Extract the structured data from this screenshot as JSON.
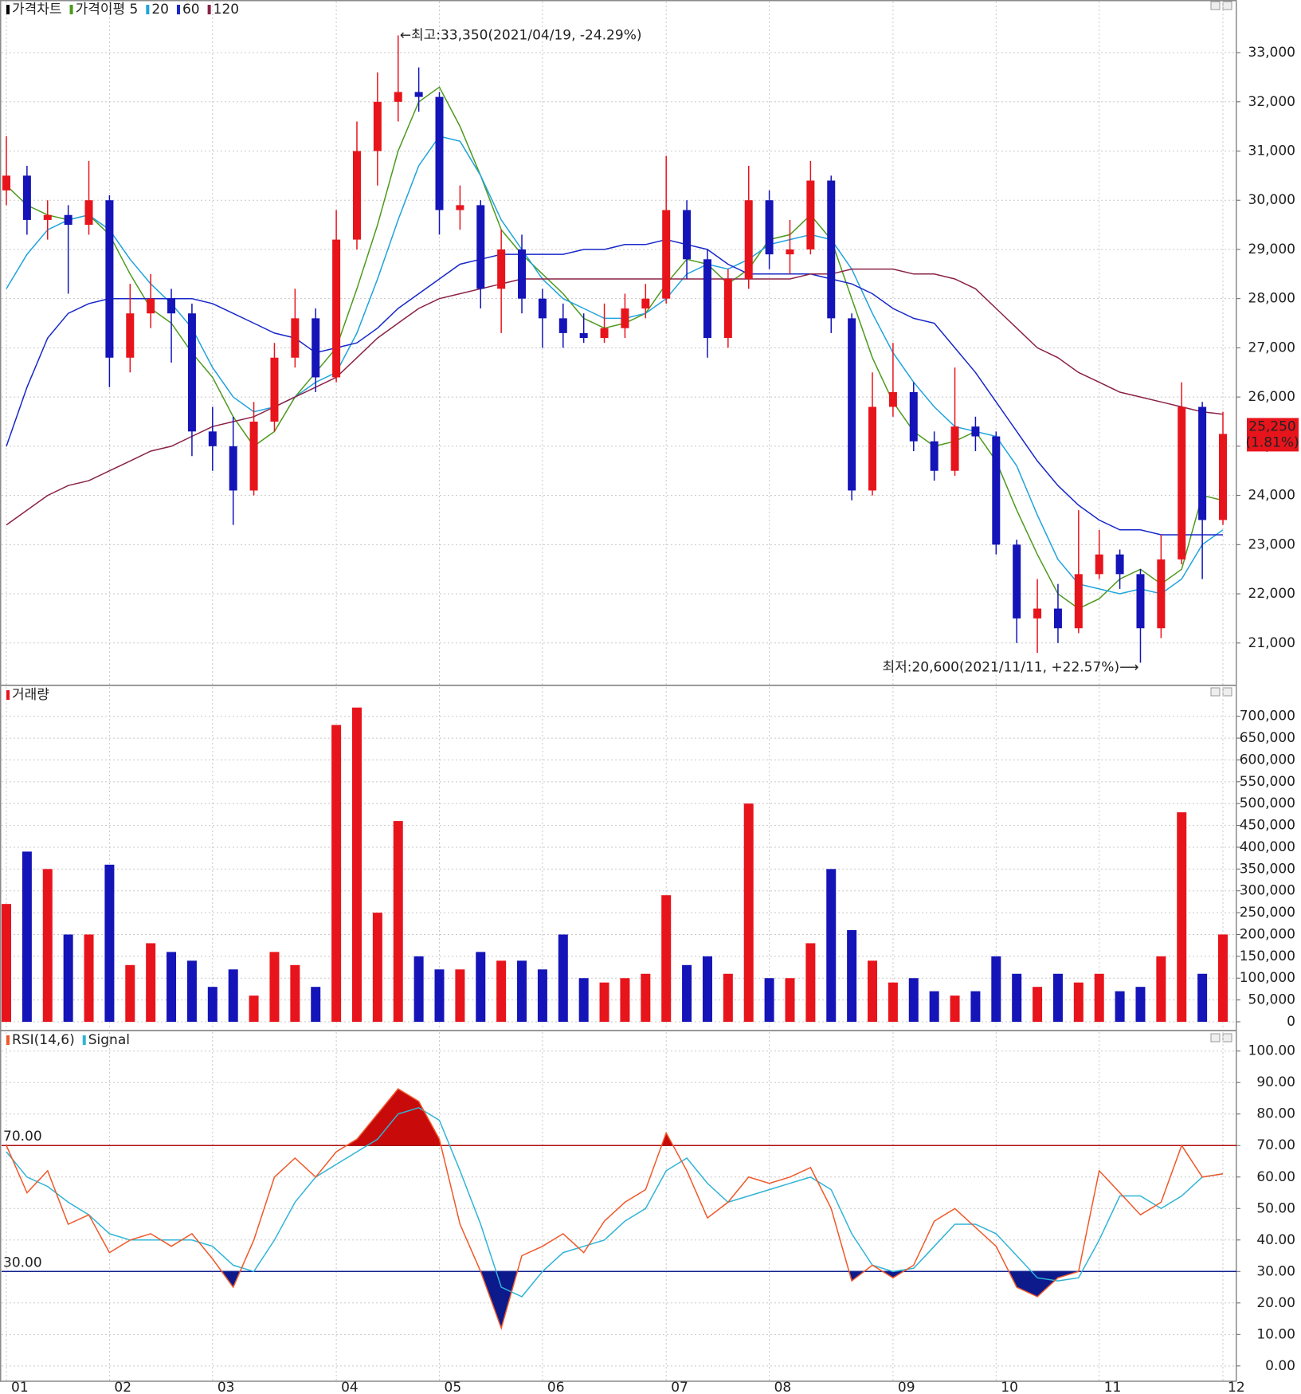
{
  "chart_data": [
    {
      "type": "candlestick",
      "legend": [
        {
          "name": "가격차트",
          "color": "#000000"
        },
        {
          "name": "가격이평 5",
          "color": "#4c9a1e"
        },
        {
          "name": "20",
          "color": "#1fa3dc"
        },
        {
          "name": "60",
          "color": "#1727c9"
        },
        {
          "name": "120",
          "color": "#8a2246"
        }
      ],
      "up_color": "#e8141c",
      "down_color": "#1414b8",
      "open": [
        30200,
        30500,
        29600,
        29700,
        29500,
        30000,
        26800,
        27700,
        28000,
        27700,
        25300,
        25000,
        24100,
        25500,
        26800,
        27600,
        26400,
        29200,
        31000,
        32000,
        32200,
        32100,
        29800,
        29900,
        28200,
        29000,
        28000,
        27600,
        27300,
        27200,
        27400,
        27800,
        28000,
        29800,
        28800,
        27200,
        28400,
        30000,
        28900,
        29000,
        30400,
        27600,
        24100,
        25800,
        26100,
        25100,
        24500,
        25400,
        25200,
        23000,
        21500,
        21700,
        21300,
        22400,
        22800,
        22400,
        21300,
        22700,
        25800,
        23500
      ],
      "high": [
        31300,
        30700,
        30000,
        29900,
        30800,
        30100,
        28300,
        28500,
        28200,
        27900,
        25800,
        25600,
        25900,
        27100,
        28200,
        27800,
        29800,
        31600,
        32600,
        33350,
        32700,
        32200,
        30300,
        30000,
        29400,
        29300,
        28200,
        27900,
        27700,
        27900,
        28100,
        28300,
        30900,
        30000,
        29000,
        28600,
        30700,
        30200,
        29600,
        30800,
        30500,
        27700,
        26500,
        27100,
        26300,
        25300,
        26600,
        25600,
        25300,
        23100,
        22300,
        22200,
        23700,
        23300,
        22900,
        22500,
        23200,
        26300,
        25900,
        25700
      ],
      "low": [
        29900,
        29300,
        29200,
        28100,
        29300,
        26200,
        26500,
        27400,
        26700,
        24800,
        24500,
        23400,
        24000,
        25300,
        26600,
        26100,
        26300,
        29000,
        30300,
        31600,
        31800,
        29300,
        29400,
        27800,
        27300,
        27700,
        27000,
        27000,
        27100,
        27100,
        27200,
        27600,
        27900,
        28400,
        26800,
        27000,
        28200,
        28600,
        28500,
        28900,
        27300,
        23900,
        24000,
        25600,
        24900,
        24300,
        24400,
        24900,
        22800,
        21000,
        20800,
        21000,
        21200,
        22300,
        22100,
        20600,
        21100,
        22600,
        22300,
        23400
      ],
      "close": [
        30500,
        29600,
        29700,
        29500,
        30000,
        26800,
        27700,
        28000,
        27700,
        25300,
        25000,
        24100,
        25500,
        26800,
        27600,
        26400,
        29200,
        31000,
        32000,
        32200,
        32100,
        29800,
        29900,
        28200,
        29000,
        28000,
        27600,
        27300,
        27200,
        27400,
        27800,
        28000,
        29800,
        28800,
        27200,
        28400,
        30000,
        28900,
        29000,
        30400,
        27600,
        24100,
        25800,
        26100,
        25100,
        24500,
        25400,
        25200,
        23000,
        21500,
        21700,
        21300,
        22400,
        22800,
        22400,
        21300,
        22700,
        25800,
        23500,
        25250
      ],
      "series": [
        {
          "name": "가격이평 5",
          "color": "#4c9a1e",
          "values": [
            30300,
            29900,
            29700,
            29600,
            29700,
            29300,
            28500,
            27800,
            27500,
            26900,
            26400,
            25600,
            25000,
            25300,
            26000,
            26500,
            27000,
            28200,
            29500,
            31000,
            32000,
            32300,
            31500,
            30500,
            29400,
            28900,
            28500,
            28100,
            27600,
            27400,
            27500,
            27700,
            28300,
            28800,
            28700,
            28300,
            28600,
            29200,
            29300,
            29700,
            29200,
            28000,
            26800,
            25900,
            25300,
            25000,
            25100,
            25300,
            24700,
            23700,
            22800,
            22000,
            21700,
            21900,
            22300,
            22500,
            22200,
            22500,
            24000,
            23900
          ]
        },
        {
          "name": "20",
          "color": "#1fa3dc",
          "values": [
            28200,
            28900,
            29400,
            29600,
            29700,
            29400,
            28800,
            28300,
            27900,
            27400,
            26600,
            26000,
            25700,
            25800,
            26000,
            26300,
            26500,
            27300,
            28400,
            29600,
            30700,
            31300,
            31200,
            30500,
            29600,
            29000,
            28400,
            28000,
            27800,
            27600,
            27600,
            27700,
            28000,
            28500,
            28700,
            28600,
            28800,
            29100,
            29200,
            29300,
            29200,
            28600,
            27700,
            26900,
            26300,
            25800,
            25400,
            25300,
            25200,
            24600,
            23600,
            22700,
            22200,
            22100,
            22000,
            22100,
            22000,
            22300,
            23000,
            23300
          ]
        },
        {
          "name": "60",
          "color": "#1727c9",
          "values": [
            25000,
            26200,
            27200,
            27700,
            27900,
            28000,
            28000,
            28000,
            28000,
            28000,
            27900,
            27700,
            27500,
            27300,
            27200,
            26900,
            27000,
            27100,
            27400,
            27800,
            28100,
            28400,
            28700,
            28800,
            28900,
            28900,
            28900,
            28900,
            29000,
            29000,
            29100,
            29100,
            29200,
            29100,
            29000,
            28700,
            28500,
            28500,
            28500,
            28500,
            28400,
            28300,
            28100,
            27800,
            27600,
            27500,
            27000,
            26500,
            25900,
            25300,
            24700,
            24200,
            23800,
            23500,
            23300,
            23300,
            23200,
            23200,
            23200,
            23200
          ]
        },
        {
          "name": "120",
          "color": "#8a2246",
          "values": [
            23400,
            23700,
            24000,
            24200,
            24300,
            24500,
            24700,
            24900,
            25000,
            25200,
            25400,
            25500,
            25600,
            25800,
            26000,
            26200,
            26400,
            26800,
            27200,
            27500,
            27800,
            28000,
            28100,
            28200,
            28300,
            28400,
            28400,
            28400,
            28400,
            28400,
            28400,
            28400,
            28400,
            28400,
            28400,
            28400,
            28400,
            28400,
            28400,
            28500,
            28500,
            28600,
            28600,
            28600,
            28500,
            28500,
            28400,
            28200,
            27800,
            27400,
            27000,
            26800,
            26500,
            26300,
            26100,
            26000,
            25900,
            25800,
            25700,
            25650
          ]
        }
      ],
      "high_annotation": "←최고:33,350(2021/04/19, -24.29%)",
      "low_annotation": "최저:20,600(2021/11/11, +22.57%)⟶",
      "last_price_label": "25,250",
      "last_change": {
        "value": 1.81,
        "label": "(1.81%)"
      },
      "ylim": [
        20170,
        34070
      ],
      "yticks": [
        {
          "value": 21000,
          "label": "21,000"
        },
        {
          "value": 22000,
          "label": "22,000"
        },
        {
          "value": 23000,
          "label": "23,000"
        },
        {
          "value": 24000,
          "label": "24,000"
        },
        {
          "value": 25000,
          "label": "25,000"
        },
        {
          "value": 26000,
          "label": "26,000"
        },
        {
          "value": 27000,
          "label": "27,000"
        },
        {
          "value": 28000,
          "label": "28,000"
        },
        {
          "value": 29000,
          "label": "29,000"
        },
        {
          "value": 30000,
          "label": "30,000"
        },
        {
          "value": 31000,
          "label": "31,000"
        },
        {
          "value": 32000,
          "label": "32,000"
        },
        {
          "value": 33000,
          "label": "33,000"
        }
      ],
      "grid": true
    },
    {
      "type": "bar",
      "legend": [
        {
          "name": "거래량",
          "color": "#e8141c"
        }
      ],
      "values": [
        270000,
        390000,
        350000,
        200000,
        200000,
        360000,
        130000,
        180000,
        160000,
        140000,
        80000,
        120000,
        60000,
        160000,
        130000,
        80000,
        680000,
        720000,
        250000,
        460000,
        150000,
        120000,
        120000,
        160000,
        140000,
        140000,
        120000,
        200000,
        100000,
        90000,
        100000,
        110000,
        290000,
        130000,
        150000,
        110000,
        500000,
        100000,
        100000,
        180000,
        350000,
        210000,
        140000,
        90000,
        100000,
        70000,
        60000,
        70000,
        150000,
        110000,
        80000,
        110000,
        90000,
        110000,
        70000,
        80000,
        150000,
        480000,
        110000,
        200000
      ],
      "ylim": [
        0,
        767000
      ],
      "yticks": [
        0,
        {
          "value": 50000,
          "label": "50,000"
        },
        {
          "value": 100000,
          "label": "100,000"
        },
        {
          "value": 150000,
          "label": "150,000"
        },
        {
          "value": 200000,
          "label": "200,000"
        },
        {
          "value": 250000,
          "label": "250,000"
        },
        {
          "value": 300000,
          "label": "300,000"
        },
        {
          "value": 350000,
          "label": "350,000"
        },
        {
          "value": 400000,
          "label": "400,000"
        },
        {
          "value": 450000,
          "label": "450,000"
        },
        {
          "value": 500000,
          "label": "500,000"
        },
        {
          "value": 550000,
          "label": "550,000"
        },
        {
          "value": 600000,
          "label": "600,000"
        },
        {
          "value": 650000,
          "label": "650,000"
        },
        {
          "value": 700000,
          "label": "700,000"
        }
      ],
      "grid": true
    },
    {
      "type": "line",
      "legend": [
        {
          "name": "RSI(14,6)",
          "color": "#f0582a"
        },
        {
          "name": "Signal",
          "color": "#2fb4d6"
        }
      ],
      "categories": [
        "01",
        null,
        null,
        null,
        null,
        "02",
        null,
        null,
        null,
        null,
        "03",
        null,
        null,
        null,
        null,
        null,
        "04",
        null,
        null,
        null,
        null,
        "05",
        null,
        null,
        null,
        null,
        "06",
        null,
        null,
        null,
        null,
        null,
        "07",
        null,
        null,
        null,
        null,
        "08",
        null,
        null,
        null,
        null,
        null,
        "09",
        null,
        null,
        null,
        null,
        "10",
        null,
        null,
        null,
        null,
        "11",
        null,
        null,
        null,
        null,
        null,
        "12"
      ],
      "series": [
        {
          "name": "RSI(14,6)",
          "color": "#f0582a",
          "values": [
            70,
            55,
            62,
            45,
            48,
            36,
            40,
            42,
            38,
            42,
            34,
            25,
            40,
            60,
            66,
            60,
            68,
            72,
            80,
            88,
            84,
            72,
            45,
            30,
            12,
            35,
            38,
            42,
            36,
            46,
            52,
            56,
            74,
            62,
            47,
            52,
            60,
            58,
            60,
            63,
            50,
            27,
            32,
            28,
            32,
            46,
            50,
            44,
            38,
            25,
            22,
            28,
            30,
            62,
            55,
            48,
            52,
            70,
            60,
            61
          ]
        },
        {
          "name": "Signal",
          "color": "#2fb4d6",
          "values": [
            68,
            60,
            57,
            52,
            48,
            42,
            40,
            40,
            40,
            40,
            38,
            32,
            30,
            40,
            52,
            60,
            64,
            68,
            72,
            80,
            82,
            78,
            62,
            45,
            25,
            22,
            30,
            36,
            38,
            40,
            46,
            50,
            62,
            66,
            58,
            52,
            54,
            56,
            58,
            60,
            56,
            42,
            32,
            30,
            31,
            38,
            45,
            45,
            42,
            35,
            28,
            27,
            28,
            40,
            54,
            54,
            50,
            54,
            60,
            61
          ]
        }
      ],
      "thresholds": [
        {
          "value": 70,
          "label": "70.00",
          "color": "#b01010",
          "fill": "#c80a0a"
        },
        {
          "value": 30,
          "label": "30.00",
          "color": "#102090",
          "fill": "#0c1a8c"
        }
      ],
      "ylim": [
        -4.6,
        106
      ],
      "yticks": [
        {
          "value": 0,
          "label": "0.00"
        },
        {
          "value": 10,
          "label": "10.00"
        },
        {
          "value": 20,
          "label": "20.00"
        },
        {
          "value": 30,
          "label": "30.00"
        },
        {
          "value": 40,
          "label": "40.00"
        },
        {
          "value": 50,
          "label": "50.00"
        },
        {
          "value": 60,
          "label": "60.00"
        },
        {
          "value": 70,
          "label": "70.00"
        },
        {
          "value": 80,
          "label": "80.00"
        },
        {
          "value": 90,
          "label": "90.00"
        },
        {
          "value": 100,
          "label": "100.00"
        }
      ],
      "grid": true
    }
  ]
}
